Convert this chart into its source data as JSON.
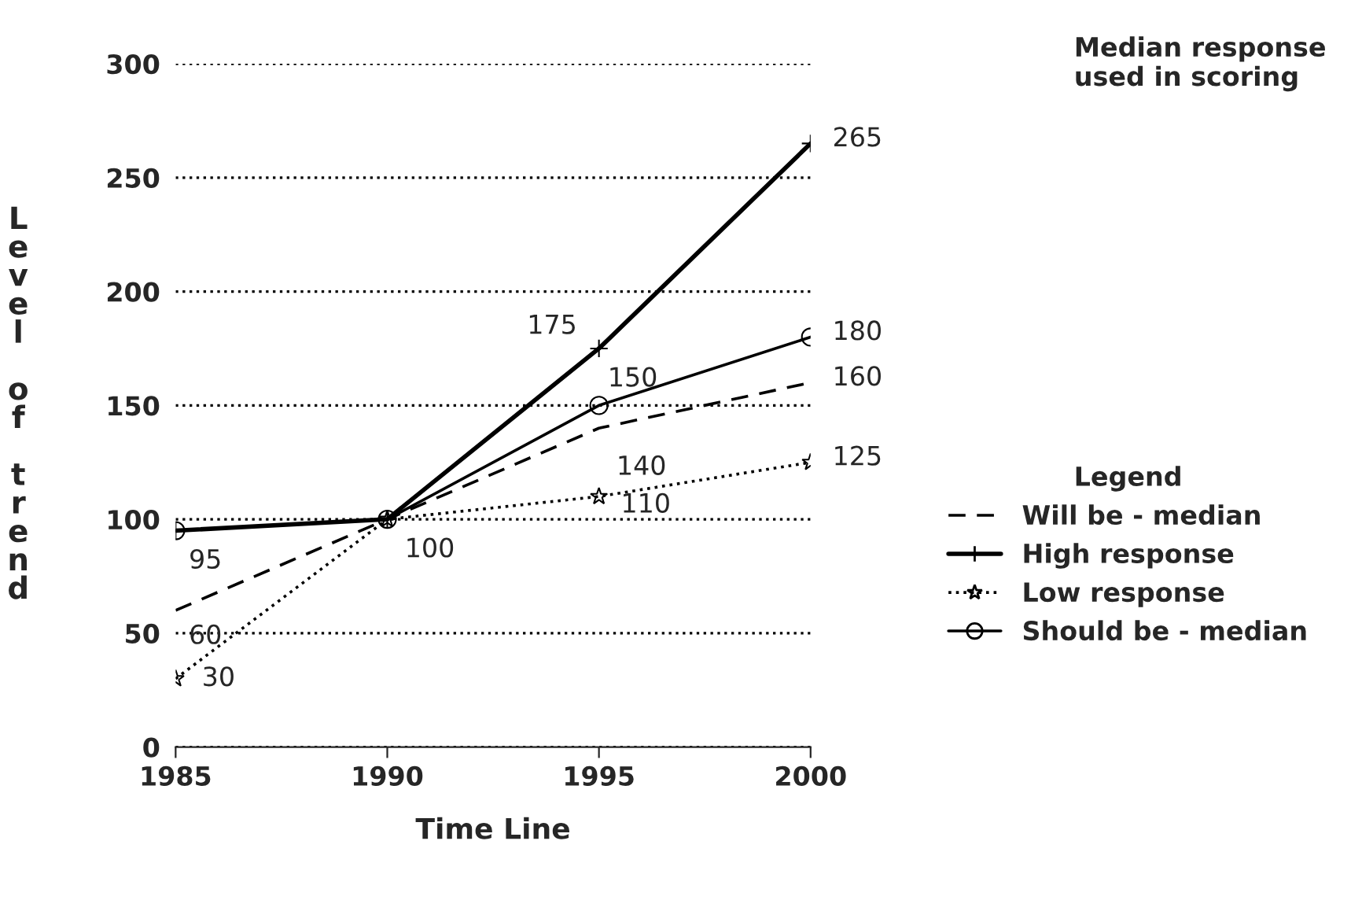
{
  "chart_data": {
    "type": "line",
    "xlabel": "Time Line",
    "ylabel": "Level of trend",
    "legend_title": "Legend",
    "annotations": [
      "Median response used in scoring"
    ],
    "x": [
      1985,
      1990,
      1995,
      2000
    ],
    "xlim": [
      1985,
      2000
    ],
    "xticks": [
      1985,
      1990,
      1995,
      2000
    ],
    "ylim": [
      0,
      300
    ],
    "yticks": [
      0,
      50,
      100,
      150,
      200,
      250,
      300
    ],
    "grid": "y",
    "legend": "right",
    "series": [
      {
        "name": "Will be - median",
        "color": "#000000",
        "line_style": "dashed",
        "marker": "none",
        "values": [
          60,
          100,
          140,
          160
        ],
        "value_labels": [
          "60",
          null,
          "140",
          "160"
        ]
      },
      {
        "name": "High response",
        "color": "#000000",
        "line_style": "solid",
        "marker": "cross",
        "values": [
          95,
          100,
          175,
          265
        ],
        "value_labels": [
          "95",
          "100",
          "175",
          "265"
        ]
      },
      {
        "name": "Low response",
        "color": "#000000",
        "line_style": "dotted",
        "marker": "star",
        "values": [
          30,
          100,
          110,
          125
        ],
        "value_labels": [
          "30",
          null,
          "110",
          "125"
        ]
      },
      {
        "name": "Should be - median",
        "color": "#000000",
        "line_style": "solid",
        "marker": "circle",
        "values": [
          95,
          100,
          150,
          180
        ],
        "value_labels": [
          null,
          null,
          "150",
          "180"
        ]
      }
    ]
  }
}
